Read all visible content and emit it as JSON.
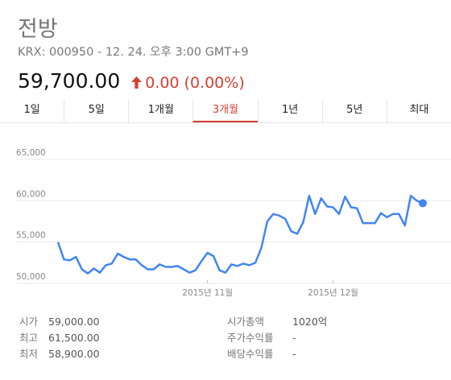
{
  "title": "전방",
  "subtitle": "KRX: 000950 - 12. 24. 오후 3:00 GMT+9",
  "price": "59,700.00",
  "change": "0.00",
  "change_pct": "(0.00%)",
  "colors": {
    "up": "#d23f31",
    "line": "#4285f4",
    "grid": "#e8e8e8"
  },
  "tabs": [
    "1일",
    "5일",
    "1개월",
    "3개월",
    "1년",
    "5년",
    "최대"
  ],
  "active_tab": 3,
  "stats_left": [
    {
      "label": "시가",
      "value": "59,000.00"
    },
    {
      "label": "최고",
      "value": "61,500.00"
    },
    {
      "label": "최저",
      "value": "58,900.00"
    }
  ],
  "stats_right": [
    {
      "label": "시가총액",
      "value": "1020억"
    },
    {
      "label": "주가수익률",
      "value": "-"
    },
    {
      "label": "배당수익률",
      "value": "-"
    }
  ],
  "chart_data": {
    "type": "line",
    "title": "",
    "xlabel": "",
    "ylabel": "",
    "ylim": [
      50000,
      65000
    ],
    "yticks": [
      50000,
      55000,
      60000,
      65000
    ],
    "ytick_labels": [
      "50,000",
      "55,000",
      "60,000",
      "65,000"
    ],
    "xtick_labels": [
      {
        "label": "2015년 11월",
        "index": 25
      },
      {
        "label": "2015년 12월",
        "index": 46
      }
    ],
    "grid": true,
    "series": [
      {
        "values": [
          55000,
          52900,
          52800,
          53200,
          51700,
          51200,
          51800,
          51300,
          52200,
          52400,
          53600,
          53200,
          52900,
          52900,
          52200,
          51700,
          51700,
          52300,
          52000,
          52000,
          52100,
          51700,
          51300,
          51600,
          52700,
          53700,
          53300,
          51600,
          51300,
          52300,
          52100,
          52400,
          52200,
          52500,
          54300,
          57500,
          58400,
          58200,
          57800,
          56300,
          56000,
          57400,
          60600,
          58400,
          60300,
          59300,
          59200,
          58400,
          60500,
          59200,
          59100,
          57300,
          57300,
          57300,
          58500,
          58000,
          58400,
          58400,
          57000,
          60600,
          60000,
          59700
        ]
      }
    ]
  }
}
